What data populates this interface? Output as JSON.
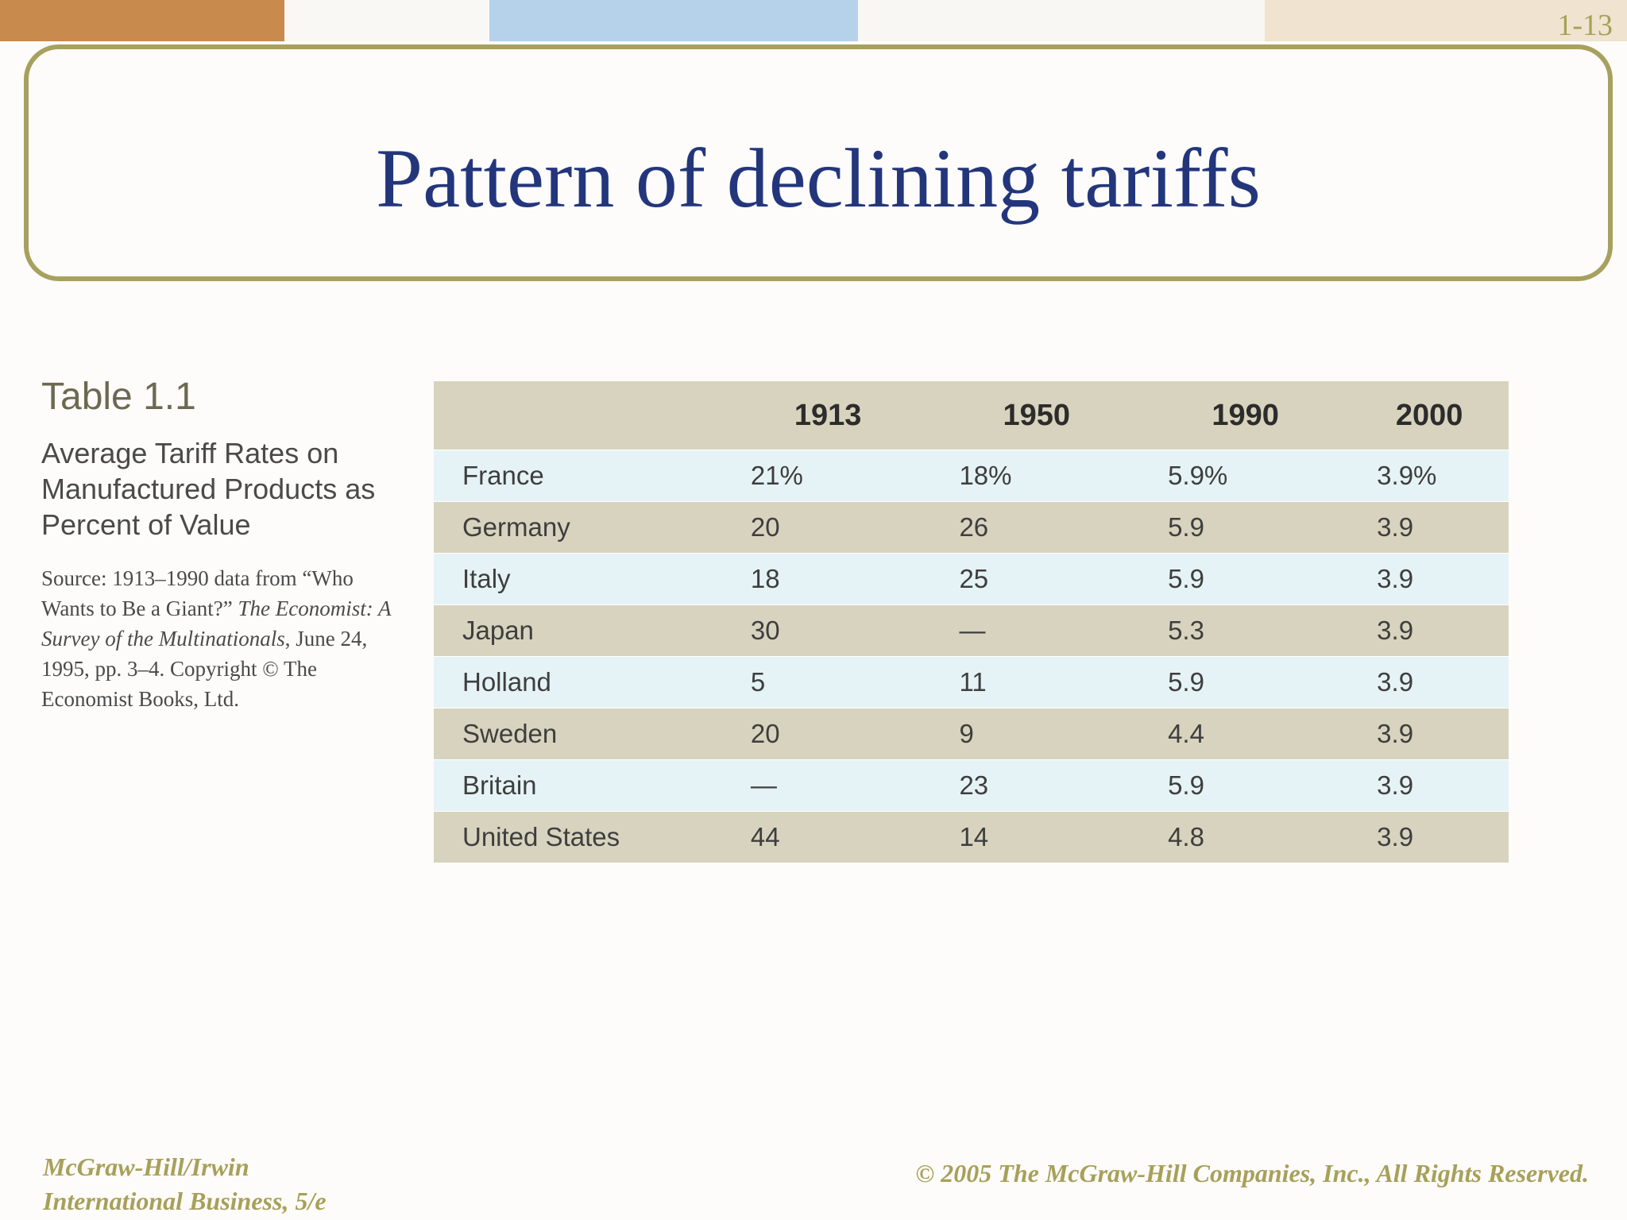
{
  "slide": {
    "number": "1-13",
    "title": "Pattern of declining tariffs"
  },
  "caption": {
    "table_label": "Table 1.1",
    "subtitle": "Average Tariff Rates on Manufactured Products as Percent of Value",
    "source_a": "Source: 1913–1990 data from “Who Wants to Be a Giant?” ",
    "source_italic": "The Economist: A Survey of the Multinationals",
    "source_b": ", June 24, 1995, pp. 3–4. Copyright © The Economist Books, Ltd."
  },
  "table": {
    "columns": [
      "",
      "1913",
      "1950",
      "1990",
      "2000"
    ],
    "rows": [
      {
        "country": "France",
        "values": [
          "21%",
          "18%",
          "5.9%",
          "3.9%"
        ]
      },
      {
        "country": "Germany",
        "values": [
          "20",
          "26",
          "5.9",
          "3.9"
        ]
      },
      {
        "country": "Italy",
        "values": [
          "18",
          "25",
          "5.9",
          "3.9"
        ]
      },
      {
        "country": "Japan",
        "values": [
          "30",
          "—",
          "5.3",
          "3.9"
        ]
      },
      {
        "country": "Holland",
        "values": [
          "5",
          "11",
          "5.9",
          "3.9"
        ]
      },
      {
        "country": "Sweden",
        "values": [
          "20",
          "9",
          "4.4",
          "3.9"
        ]
      },
      {
        "country": "Britain",
        "values": [
          "—",
          "23",
          "5.9",
          "3.9"
        ]
      },
      {
        "country": "United States",
        "values": [
          "44",
          "14",
          "4.8",
          "3.9"
        ]
      }
    ]
  },
  "footer": {
    "publisher": "McGraw-Hill/Irwin",
    "book": "International Business, 5/e",
    "copyright": "© 2005 The McGraw-Hill Companies, Inc., All Rights Reserved."
  },
  "colors": {
    "title": "#23367c",
    "accent_border": "#a8a05e",
    "header_band": "#d8d3be",
    "row_light": "#e6f3f6"
  }
}
